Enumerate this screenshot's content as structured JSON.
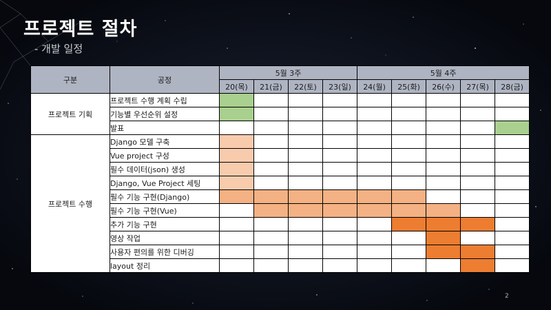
{
  "slide": {
    "title": "프로젝트 절차",
    "subtitle": "- 개발 일정",
    "page_number": "2"
  },
  "colors": {
    "green": "#a9d08e",
    "orange_light": "#f8cbad",
    "orange_mid": "#f4b183",
    "orange_dark": "#ed7d31"
  },
  "table": {
    "header_category": "구분",
    "header_process": "공정",
    "weeks": [
      {
        "label": "5월 3주",
        "span": 4
      },
      {
        "label": "5월 4주",
        "span": 5
      }
    ],
    "days": [
      "20(목)",
      "21(금)",
      "22(토)",
      "23(일)",
      "24(월)",
      "25(화)",
      "26(수)",
      "27(목)",
      "28(금)"
    ],
    "groups": [
      {
        "label": "프로젝트 기획",
        "tasks": [
          {
            "name": "프로젝트 수행 계획 수립",
            "cells": [
              "green",
              "",
              "",
              "",
              "",
              "",
              "",
              "",
              ""
            ]
          },
          {
            "name": "기능별 우선순위 설정",
            "cells": [
              "green",
              "",
              "",
              "",
              "",
              "",
              "",
              "",
              ""
            ]
          },
          {
            "name": "발표",
            "cells": [
              "",
              "",
              "",
              "",
              "",
              "",
              "",
              "",
              "green"
            ]
          }
        ]
      },
      {
        "label": "프로젝트 수행",
        "tasks": [
          {
            "name": "Django 모델 구축",
            "cells": [
              "orange_light",
              "",
              "",
              "",
              "",
              "",
              "",
              "",
              ""
            ]
          },
          {
            "name": "Vue project 구성",
            "cells": [
              "orange_light",
              "",
              "",
              "",
              "",
              "",
              "",
              "",
              ""
            ]
          },
          {
            "name": "필수 데이터(json) 생성",
            "cells": [
              "orange_light",
              "",
              "",
              "",
              "",
              "",
              "",
              "",
              ""
            ]
          },
          {
            "name": "Django, Vue Project 세팅",
            "cells": [
              "orange_light",
              "",
              "",
              "",
              "",
              "",
              "",
              "",
              ""
            ]
          },
          {
            "name": "필수 기능 구현(Django)",
            "cells": [
              "orange_mid",
              "orange_mid",
              "orange_mid",
              "orange_mid",
              "orange_mid",
              "orange_mid",
              "",
              "",
              ""
            ]
          },
          {
            "name": "필수 기능 구현(Vue)",
            "cells": [
              "",
              "orange_mid",
              "orange_mid",
              "orange_mid",
              "orange_mid",
              "orange_mid",
              "orange_mid",
              "",
              ""
            ]
          },
          {
            "name": "추가 기능 구현",
            "cells": [
              "",
              "",
              "",
              "",
              "",
              "orange_dark",
              "orange_dark",
              "orange_dark",
              ""
            ]
          },
          {
            "name": "영상 작업",
            "cells": [
              "",
              "",
              "",
              "",
              "",
              "",
              "orange_dark",
              "",
              ""
            ]
          },
          {
            "name": "사용자 편의를 위한 디버깅",
            "cells": [
              "",
              "",
              "",
              "",
              "",
              "",
              "orange_dark",
              "orange_dark",
              ""
            ]
          },
          {
            "name": "layout 정리",
            "cells": [
              "",
              "",
              "",
              "",
              "",
              "",
              "",
              "orange_dark",
              ""
            ]
          }
        ]
      }
    ]
  }
}
